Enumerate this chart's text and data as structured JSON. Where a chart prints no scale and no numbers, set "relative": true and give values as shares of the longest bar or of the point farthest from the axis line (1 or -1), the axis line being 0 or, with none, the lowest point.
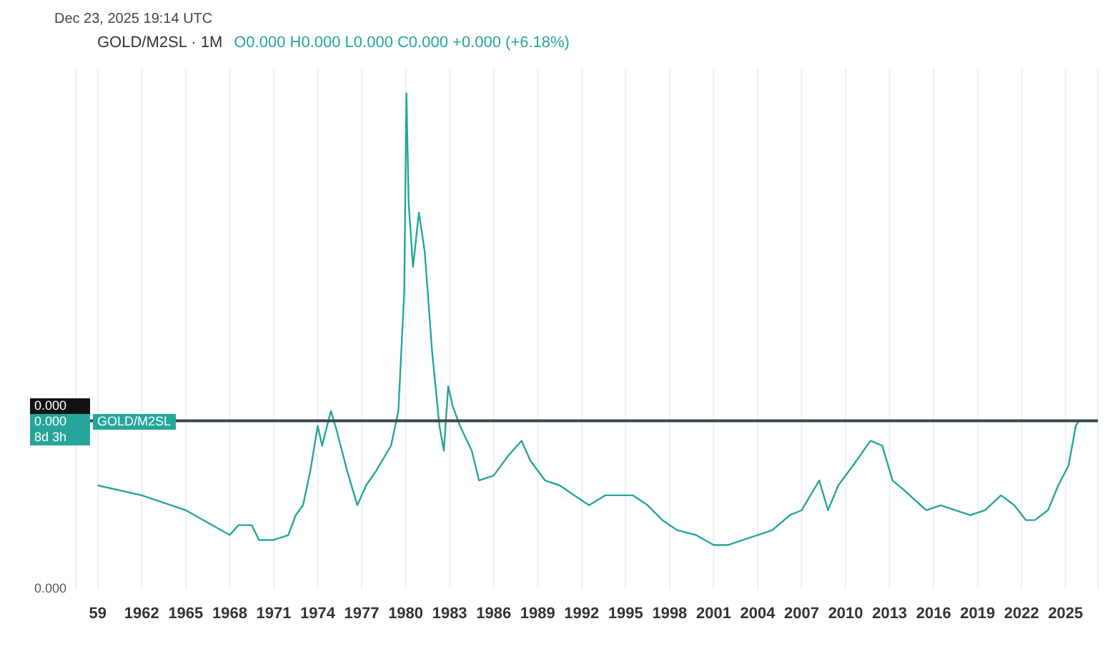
{
  "chart_data": {
    "type": "line",
    "relative": true,
    "title": "GOLD/M2SL · 1M",
    "subtitle": "O0.000 H0.000 L0.000 C0.000 +0.000 (+6.18%)",
    "x": [
      1959,
      1962,
      1965,
      1968,
      1968.6,
      1969.5,
      1970,
      1971,
      1972,
      1972.5,
      1973,
      1973.5,
      1974,
      1974.3,
      1974.9,
      1975.3,
      1976,
      1976.7,
      1977.3,
      1978,
      1979,
      1979.5,
      1979.9,
      1980.05,
      1980.2,
      1980.5,
      1980.9,
      1981.3,
      1981.8,
      1982.3,
      1982.6,
      1982.9,
      1983.2,
      1983.7,
      1984.5,
      1985,
      1986,
      1987,
      1987.9,
      1988.5,
      1989.5,
      1990.5,
      1991.5,
      1992.5,
      1993.6,
      1994.5,
      1995.5,
      1996.5,
      1997.5,
      1998.5,
      1999.8,
      2001,
      2002,
      2003,
      2004,
      2005,
      2006.2,
      2007,
      2008.2,
      2008.8,
      2009.5,
      2010.5,
      2011.7,
      2012.5,
      2013.2,
      2014,
      2015.5,
      2016.5,
      2017.5,
      2018.5,
      2019.5,
      2020.6,
      2021.5,
      2022.3,
      2022.9,
      2023.8,
      2024.5,
      2025.2,
      2025.7,
      2025.9
    ],
    "series": [
      {
        "color": "#26a69a",
        "values": [
          0.21,
          0.19,
          0.16,
          0.11,
          0.13,
          0.13,
          0.1,
          0.1,
          0.11,
          0.15,
          0.17,
          0.24,
          0.33,
          0.29,
          0.36,
          0.32,
          0.24,
          0.17,
          0.21,
          0.24,
          0.29,
          0.36,
          0.6,
          1,
          0.78,
          0.65,
          0.76,
          0.68,
          0.48,
          0.33,
          0.28,
          0.41,
          0.37,
          0.33,
          0.28,
          0.22,
          0.23,
          0.27,
          0.3,
          0.26,
          0.22,
          0.21,
          0.19,
          0.17,
          0.19,
          0.19,
          0.19,
          0.17,
          0.14,
          0.12,
          0.11,
          0.09,
          0.09,
          0.1,
          0.11,
          0.12,
          0.15,
          0.16,
          0.22,
          0.16,
          0.21,
          0.25,
          0.3,
          0.29,
          0.22,
          0.2,
          0.16,
          0.17,
          0.16,
          0.15,
          0.16,
          0.19,
          0.17,
          0.14,
          0.14,
          0.16,
          0.21,
          0.25,
          0.33,
          0.34
        ]
      }
    ],
    "xlim": [
      1957.5,
      2027.2
    ],
    "xticks": [
      {
        "value": 1959,
        "label": "59"
      },
      1962,
      1965,
      1968,
      1971,
      1974,
      1977,
      1980,
      1983,
      1986,
      1989,
      1992,
      1995,
      1998,
      2001,
      2004,
      2007,
      2010,
      2013,
      2016,
      2019,
      2022,
      2025
    ],
    "grid": "x",
    "marker": "none",
    "line_style": "solid",
    "ref_lines": [
      {
        "axis": "y",
        "value": 0.34,
        "label": "GOLD/M2SL",
        "color": "#37474f"
      }
    ],
    "annotations": [
      "0.000",
      "0.000",
      "8d 3h",
      "0.000",
      "Dec 23, 2025 19:14 UTC"
    ]
  }
}
